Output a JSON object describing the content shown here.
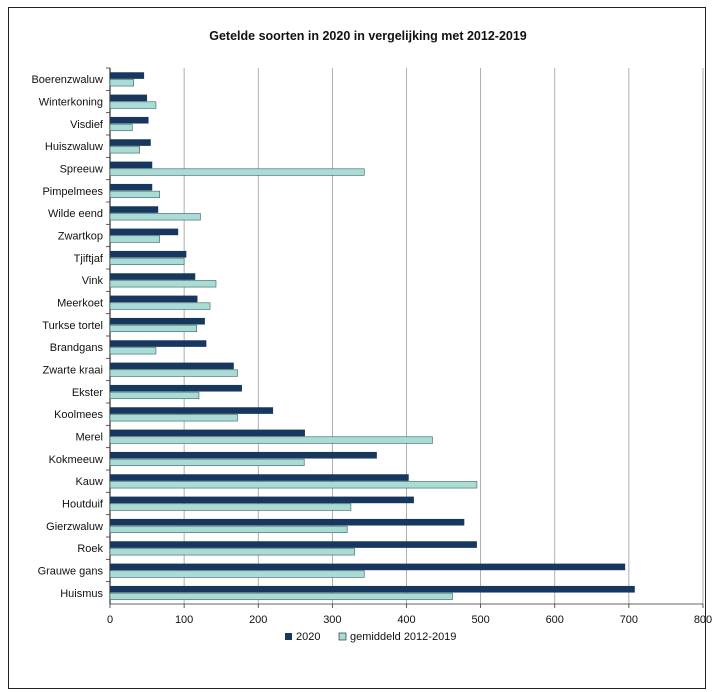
{
  "chart_data": {
    "type": "bar",
    "orientation": "horizontal",
    "title": "Getelde soorten in 2020 in vergelijking met 2012-2019",
    "categories": [
      "Boerenzwaluw",
      "Winterkoning",
      "Visdief",
      "Huiszwaluw",
      "Spreeuw",
      "Pimpelmees",
      "Wilde eend",
      "Zwartkop",
      "Tjiftjaf",
      "Vink",
      "Meerkoet",
      "Turkse tortel",
      "Brandgans",
      "Zwarte kraai",
      "Ekster",
      "Koolmees",
      "Merel",
      "Kokmeeuw",
      "Kauw",
      "Houtduif",
      "Gierzwaluw",
      "Roek",
      "Grauwe gans",
      "Huismus"
    ],
    "series": [
      {
        "name": "2020",
        "color": "#17375e",
        "values": [
          46,
          50,
          52,
          55,
          57,
          57,
          65,
          92,
          103,
          115,
          118,
          128,
          130,
          167,
          178,
          220,
          263,
          360,
          403,
          410,
          478,
          495,
          695,
          708
        ]
      },
      {
        "name": "gemiddeld 2012-2019",
        "color": "#a9dcd6",
        "values": [
          32,
          62,
          30,
          40,
          343,
          67,
          122,
          67,
          100,
          143,
          135,
          117,
          62,
          172,
          120,
          172,
          435,
          262,
          495,
          325,
          320,
          330,
          343,
          462
        ]
      }
    ],
    "xlim": [
      0,
      800
    ],
    "xticks": [
      "0",
      "100",
      "200",
      "300",
      "400",
      "500",
      "600",
      "700",
      "800"
    ],
    "grid": true,
    "legend": "bottom"
  }
}
